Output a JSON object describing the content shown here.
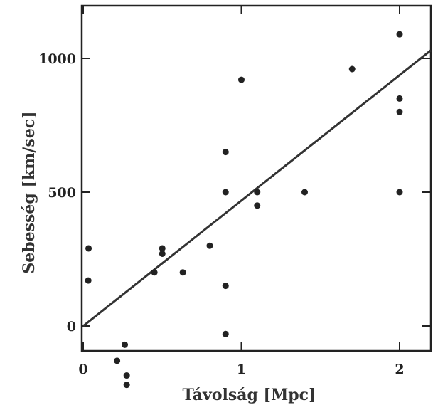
{
  "chart_data": {
    "type": "scatter",
    "xlabel": "Távolság [Mpc]",
    "ylabel": "Sebesség [km/sec]",
    "xlim": [
      0,
      2.2
    ],
    "ylim": [
      -100,
      1200
    ],
    "xticks": [
      0,
      1,
      2
    ],
    "xtick_labels": [
      "0",
      "1",
      "2"
    ],
    "yticks": [
      0,
      500,
      1000
    ],
    "ytick_labels": [
      "0",
      "500",
      "1000"
    ],
    "grid": false,
    "legend": "none",
    "series": [
      {
        "points": [
          {
            "x": 0.032,
            "y": 170
          },
          {
            "x": 0.034,
            "y": 290
          },
          {
            "x": 0.214,
            "y": -130
          },
          {
            "x": 0.263,
            "y": -70
          },
          {
            "x": 0.275,
            "y": -185
          },
          {
            "x": 0.275,
            "y": -220
          },
          {
            "x": 0.45,
            "y": 200
          },
          {
            "x": 0.5,
            "y": 290
          },
          {
            "x": 0.5,
            "y": 270
          },
          {
            "x": 0.63,
            "y": 200
          },
          {
            "x": 0.8,
            "y": 300
          },
          {
            "x": 0.9,
            "y": -30
          },
          {
            "x": 0.9,
            "y": 650
          },
          {
            "x": 0.9,
            "y": 150
          },
          {
            "x": 0.9,
            "y": 500
          },
          {
            "x": 1.0,
            "y": 920
          },
          {
            "x": 1.1,
            "y": 450
          },
          {
            "x": 1.1,
            "y": 500
          },
          {
            "x": 1.4,
            "y": 500
          },
          {
            "x": 1.7,
            "y": 960
          },
          {
            "x": 2.0,
            "y": 500
          },
          {
            "x": 2.0,
            "y": 850
          },
          {
            "x": 2.0,
            "y": 800
          },
          {
            "x": 2.0,
            "y": 1090
          }
        ]
      }
    ],
    "fit_line": {
      "x": [
        0,
        2.2
      ],
      "y": [
        0,
        1030
      ]
    }
  }
}
